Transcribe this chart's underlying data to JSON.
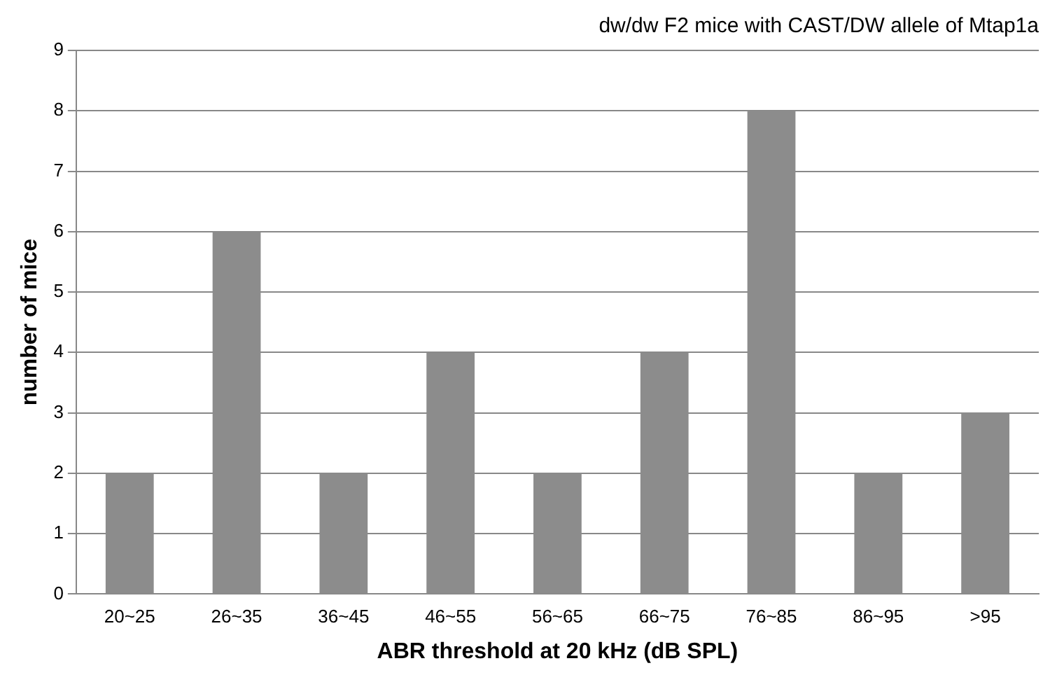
{
  "chart_data": {
    "type": "bar",
    "title": "dw/dw F2 mice with CAST/DW allele of Mtap1a",
    "xlabel": "ABR threshold at 20 kHz (dB SPL)",
    "ylabel": "number of mice",
    "categories": [
      "20~25",
      "26~35",
      "36~45",
      "46~55",
      "56~65",
      "66~75",
      "76~85",
      "86~95",
      ">95"
    ],
    "values": [
      2,
      6,
      2,
      4,
      2,
      4,
      8,
      2,
      3
    ],
    "color": "#8c8c8c",
    "ylim": [
      0,
      9
    ],
    "yticks": [
      0,
      1,
      2,
      3,
      4,
      5,
      6,
      7,
      8,
      9
    ],
    "grid": "y",
    "legend": false
  }
}
